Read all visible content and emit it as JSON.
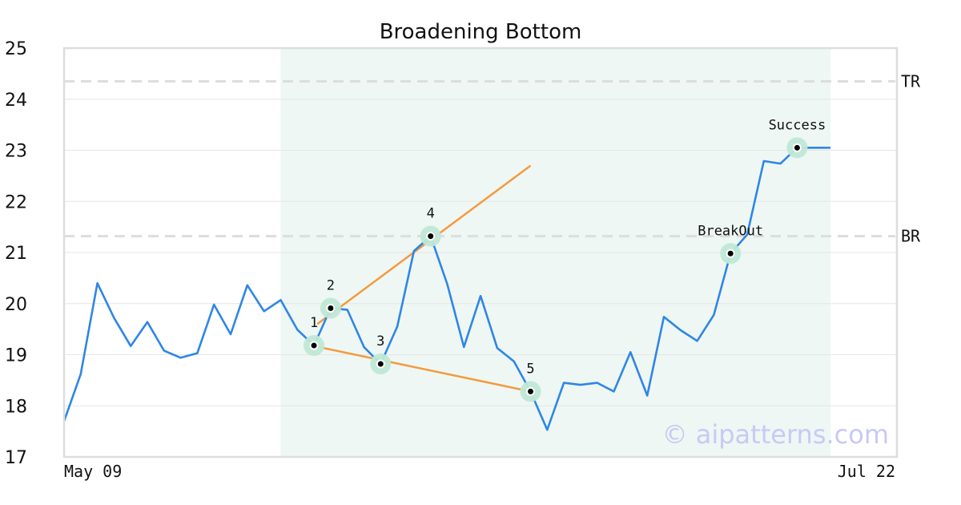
{
  "chart_data": {
    "type": "line",
    "title": "Broadening Bottom",
    "xlabel": "",
    "ylabel": "",
    "ylim": [
      17,
      25
    ],
    "xlim": [
      0,
      47
    ],
    "yticks": [
      17,
      18,
      19,
      20,
      21,
      22,
      23,
      24,
      25
    ],
    "xtick_labels": [
      {
        "x": 0,
        "label": "May 09"
      },
      {
        "x": 46,
        "label": "Jul 22"
      }
    ],
    "grid": "horizontal",
    "colors": {
      "price": "#2f86e6",
      "trendline": "#f59a3e",
      "reference": "#dddddd",
      "highlight": "#eef7f3",
      "marker_halo": "#bfe8d6",
      "marker_dot": "#000000",
      "axis": "#dddddd",
      "watermark": "#c9c9f5"
    },
    "highlight_range": [
      13,
      46
    ],
    "series": [
      {
        "x": [
          0,
          1,
          2,
          3,
          4,
          5,
          6,
          7,
          8,
          9,
          10,
          11,
          12,
          13,
          14,
          15,
          16,
          17,
          18,
          19,
          20,
          21,
          22,
          23,
          24,
          25,
          26,
          27,
          28,
          29,
          30,
          31,
          32,
          33,
          34,
          35,
          36,
          37,
          38,
          39,
          40,
          41,
          42,
          43,
          44,
          45,
          46
        ],
        "values": [
          17.7,
          18.62,
          20.4,
          19.72,
          19.17,
          19.64,
          19.08,
          18.94,
          19.03,
          19.98,
          19.4,
          20.36,
          19.85,
          20.07,
          19.49,
          19.18,
          19.91,
          19.88,
          19.15,
          18.82,
          19.55,
          21.03,
          21.32,
          20.38,
          19.15,
          20.15,
          19.13,
          18.87,
          18.28,
          17.53,
          18.45,
          18.41,
          18.45,
          18.28,
          19.05,
          18.2,
          19.74,
          19.48,
          19.27,
          19.78,
          20.98,
          21.35,
          22.79,
          22.74,
          23.05,
          23.05,
          23.05
        ]
      }
    ],
    "trendlines": [
      {
        "x": [
          15.2,
          28.0
        ],
        "y": [
          19.6,
          22.7
        ]
      },
      {
        "x": [
          15.0,
          28.0
        ],
        "y": [
          19.17,
          18.28
        ]
      }
    ],
    "reference_lines": [
      {
        "label": "TR",
        "y": 24.35
      },
      {
        "label": "BR",
        "y": 21.32
      }
    ],
    "annotations": [
      {
        "label": "1",
        "x": 15,
        "y": 19.18
      },
      {
        "label": "2",
        "x": 16,
        "y": 19.91
      },
      {
        "label": "3",
        "x": 19,
        "y": 18.82
      },
      {
        "label": "4",
        "x": 22,
        "y": 21.32
      },
      {
        "label": "5",
        "x": 28,
        "y": 18.28
      },
      {
        "label": "BreakOut",
        "x": 40,
        "y": 20.98
      },
      {
        "label": "Success",
        "x": 44,
        "y": 23.05
      }
    ],
    "watermark": "© aipatterns.com"
  }
}
